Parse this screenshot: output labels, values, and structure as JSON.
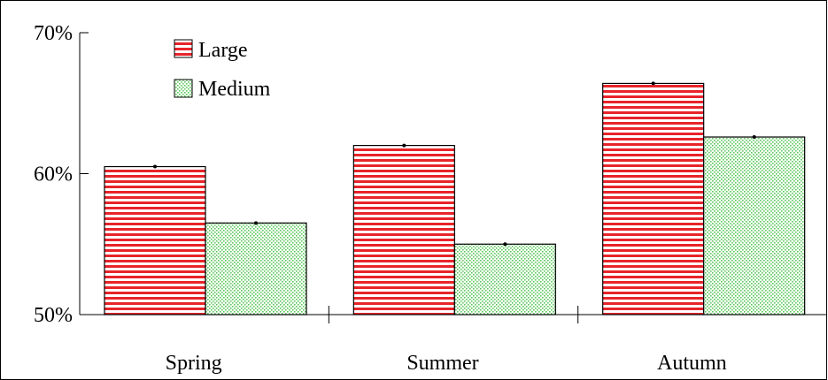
{
  "chart_data": {
    "type": "bar",
    "categories": [
      "Spring",
      "Summer",
      "Autumn"
    ],
    "series": [
      {
        "name": "Large",
        "values": [
          60.5,
          62.0,
          66.4
        ],
        "color": "#e8242a",
        "pattern": "horizontal-stripes"
      },
      {
        "name": "Medium",
        "values": [
          56.5,
          55.0,
          62.6
        ],
        "color": "#5cc85c",
        "pattern": "dots"
      }
    ],
    "ylim": [
      50,
      70
    ],
    "yticks": [
      {
        "value": 50,
        "label": "50%"
      },
      {
        "value": 60,
        "label": "60%"
      },
      {
        "value": 70,
        "label": "70%"
      }
    ],
    "xlabel": "",
    "ylabel": "",
    "title": "",
    "legend_position": "top-left",
    "grid": false
  }
}
